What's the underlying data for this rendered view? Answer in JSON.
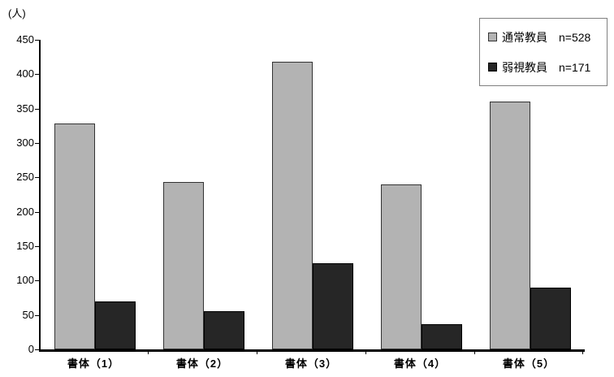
{
  "unit_label": "(人)",
  "chart_data": {
    "type": "bar",
    "title": "",
    "ylabel": "(人)",
    "xlabel": "",
    "categories": [
      "書体（1）",
      "書体（2）",
      "書体（3）",
      "書体（4）",
      "書体（5）"
    ],
    "series": [
      {
        "name": "通常教員",
        "n_label": "n=528",
        "color": "#b3b3b3",
        "border_color": "#333333",
        "values": [
          328,
          243,
          418,
          240,
          360
        ]
      },
      {
        "name": "弱視教員",
        "n_label": "n=171",
        "color": "#262626",
        "border_color": "#000000",
        "values": [
          70,
          56,
          125,
          37,
          90
        ]
      }
    ],
    "ylim": [
      0,
      450
    ],
    "y_ticks": [
      0,
      50,
      100,
      150,
      200,
      250,
      300,
      350,
      400,
      450
    ],
    "grid": false,
    "legend_position": "top-right"
  }
}
